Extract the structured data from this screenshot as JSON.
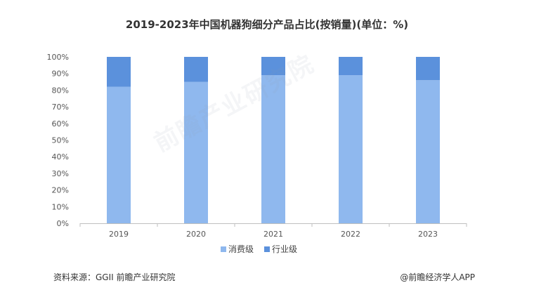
{
  "colors": {
    "consumer": "#8fb8ee",
    "industry": "#5b91dc",
    "axis": "#bfbfbf",
    "text": "#555555"
  },
  "chart_data": {
    "type": "bar",
    "stacked": true,
    "title": "2019-2023年中国机器狗细分产品占比(按销量)(单位：%)",
    "categories": [
      "2019",
      "2020",
      "2021",
      "2022",
      "2023"
    ],
    "series": [
      {
        "name": "消费级",
        "values": [
          82,
          85,
          89,
          89,
          86
        ]
      },
      {
        "name": "行业级",
        "values": [
          18,
          15,
          11,
          11,
          14
        ]
      }
    ],
    "y_ticks": [
      "0%",
      "10%",
      "20%",
      "30%",
      "40%",
      "50%",
      "60%",
      "70%",
      "80%",
      "90%",
      "100%"
    ],
    "ylim": [
      0,
      100
    ],
    "legend_position": "bottom",
    "grid": false
  },
  "footer": {
    "source": "资料来源：GGII 前瞻产业研究院",
    "credit": "@前瞻经济学人APP"
  },
  "watermark": "前瞻产业研究院"
}
